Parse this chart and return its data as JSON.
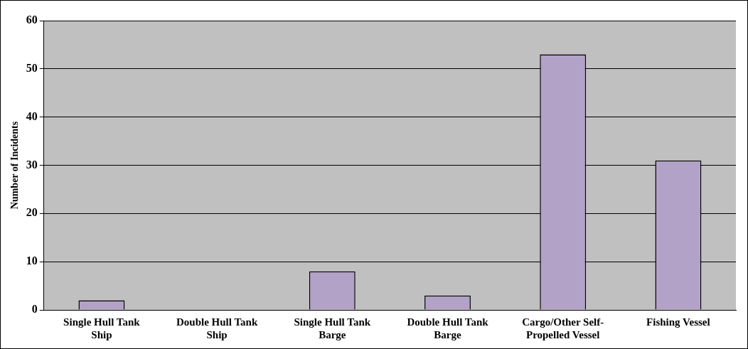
{
  "chart_data": {
    "type": "bar",
    "ylabel": "Number of Incidents",
    "categories": [
      "Single Hull Tank Ship",
      "Double Hull Tank Ship",
      "Single Hull Tank Barge",
      "Double Hull Tank Barge",
      "Cargo/Other Self-Propelled Vessel",
      "Fishing Vessel"
    ],
    "values": [
      2,
      0,
      8,
      3,
      53,
      31
    ],
    "color": "#b3a2c7",
    "ylim": [
      0,
      60
    ],
    "yticks": [
      0,
      10,
      20,
      30,
      40,
      50,
      60
    ],
    "grid": "y",
    "legend": false
  }
}
